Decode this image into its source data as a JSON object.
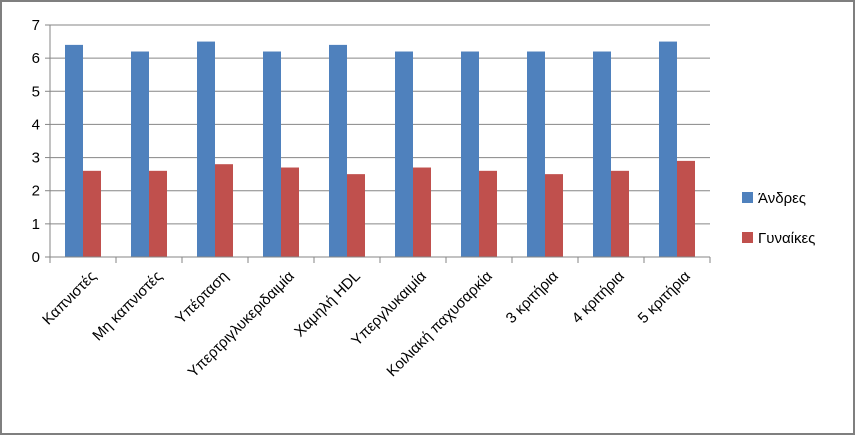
{
  "chart_data": {
    "type": "bar",
    "title": "",
    "xlabel": "",
    "ylabel": "",
    "ylim": [
      0,
      7
    ],
    "yticks": [
      0,
      1,
      2,
      3,
      4,
      5,
      6,
      7
    ],
    "grid": true,
    "legend_position": "right",
    "categories": [
      "Καπνιστές",
      "Μη καπνιστές",
      "Υπέρταση",
      "Υπερτριγλυκεριδαιμία",
      "Χαμηλή HDL",
      "Υπεργλυκαιμία",
      "Κοιλιακή παχυσαρκία",
      "3 κριτήρια",
      "4 κριτήρια",
      "5 κριτήρια"
    ],
    "series": [
      {
        "name": "Άνδρες",
        "color": "#4f81bd",
        "values": [
          6.4,
          6.2,
          6.5,
          6.2,
          6.4,
          6.2,
          6.2,
          6.2,
          6.2,
          6.5
        ]
      },
      {
        "name": "Γυναίκες",
        "color": "#c0504d",
        "values": [
          2.6,
          2.6,
          2.8,
          2.7,
          2.5,
          2.7,
          2.6,
          2.5,
          2.6,
          2.9
        ]
      }
    ]
  }
}
